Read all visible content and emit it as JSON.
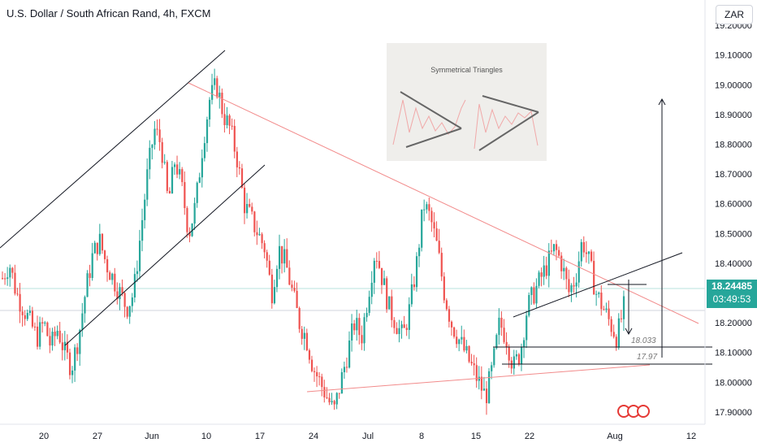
{
  "header": {
    "title": "U.S. Dollar / South African Rand, 4h, FXCM",
    "currency": "ZAR"
  },
  "last_price": {
    "value": "18.24485",
    "countdown": "03:49:53",
    "color": "#26a69a"
  },
  "inset": {
    "title": "Symmetrical Triangles"
  },
  "levels": {
    "a_label": "18.033",
    "b_label": "17.97"
  },
  "colors": {
    "up": "#26a69a",
    "down": "#ef5350",
    "trend_red": "#f28b8b",
    "channel": "#131722"
  },
  "chart_data": {
    "type": "candlestick",
    "y_ticks": [
      "17.80000",
      "17.90000",
      "18.00000",
      "18.10000",
      "18.20000",
      "18.30000",
      "18.40000",
      "18.50000",
      "18.60000",
      "18.70000",
      "18.80000",
      "18.90000",
      "19.00000",
      "19.10000",
      "19.20000"
    ],
    "x_ticks": [
      "20",
      "27",
      "Jun",
      "10",
      "17",
      "24",
      "Jul",
      "8",
      "15",
      "22",
      "Aug",
      "12"
    ],
    "ylim": [
      17.77,
      19.22
    ],
    "grid": false,
    "candles_close": [
      18.35,
      18.4,
      18.3,
      18.25,
      18.2,
      18.15,
      18.2,
      18.12,
      18.18,
      18.1,
      18.05,
      18.15,
      18.3,
      18.42,
      18.48,
      18.4,
      18.35,
      18.3,
      18.25,
      18.3,
      18.5,
      18.7,
      18.85,
      18.8,
      18.6,
      18.75,
      18.65,
      18.5,
      18.6,
      18.8,
      18.95,
      19.0,
      18.9,
      18.85,
      18.75,
      18.6,
      18.55,
      18.5,
      18.45,
      18.3,
      18.45,
      18.4,
      18.3,
      18.2,
      18.15,
      18.05,
      18.0,
      17.95,
      17.9,
      18.0,
      18.1,
      18.2,
      18.15,
      18.3,
      18.45,
      18.35,
      18.25,
      18.2,
      18.15,
      18.25,
      18.4,
      18.6,
      18.55,
      18.45,
      18.3,
      18.2,
      18.15,
      18.1,
      18.05,
      18.0,
      17.95,
      18.05,
      18.2,
      18.15,
      18.05,
      18.1,
      18.25,
      18.3,
      18.35,
      18.4,
      18.45,
      18.4,
      18.3,
      18.35,
      18.48,
      18.4,
      18.3,
      18.25,
      18.2,
      18.15,
      18.25
    ]
  }
}
